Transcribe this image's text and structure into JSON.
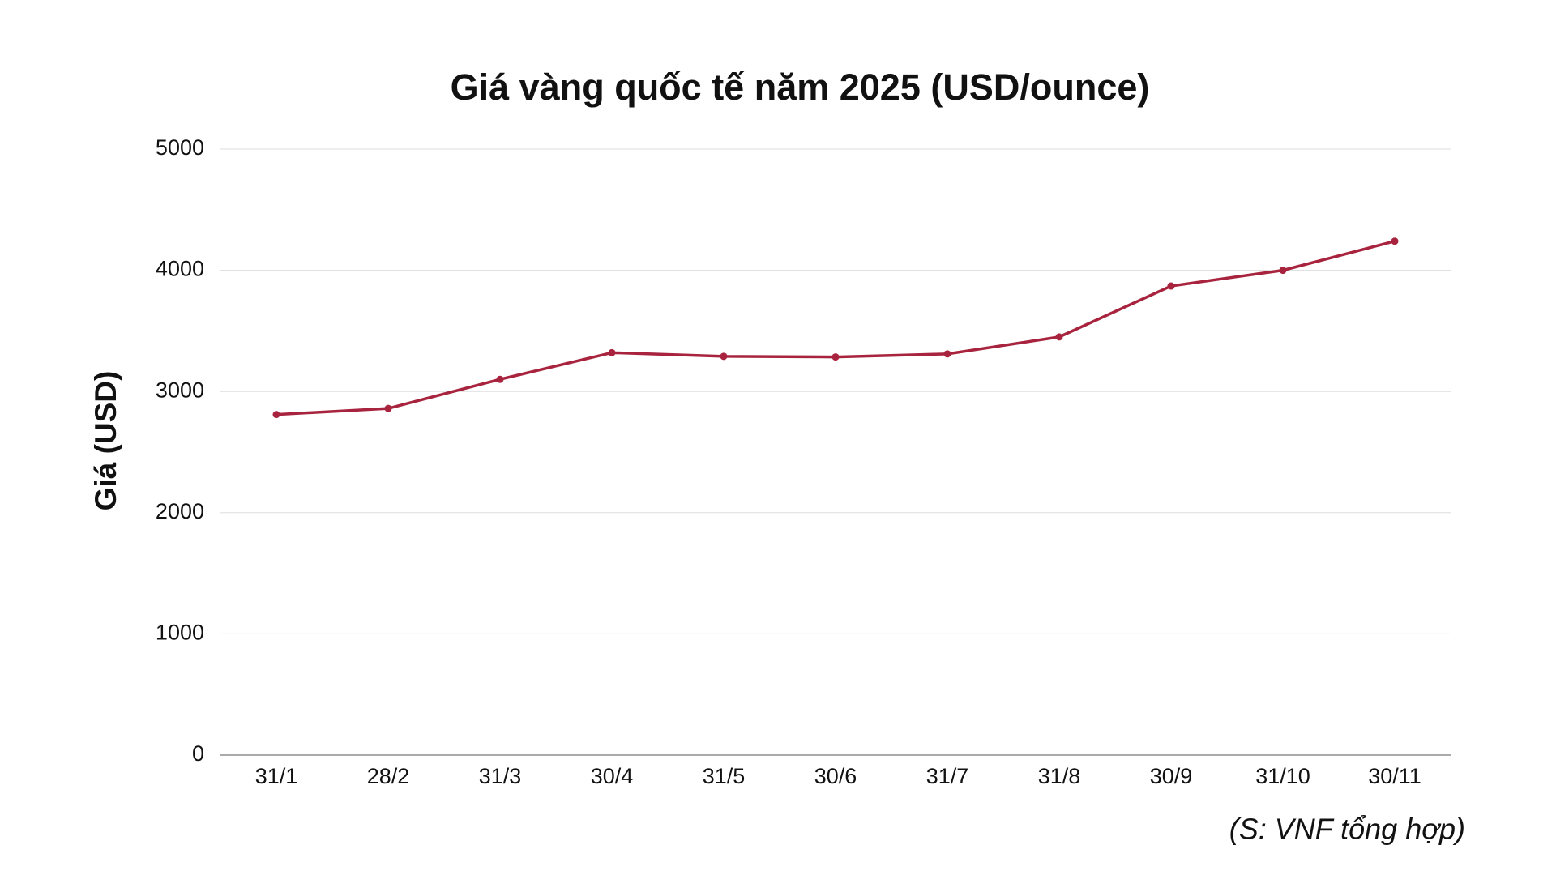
{
  "chart_data": {
    "type": "line",
    "title": "Giá vàng quốc tế năm 2025 (USD/ounce)",
    "y_label": "Giá (USD)",
    "source": "(S: VNF tổng hợp)",
    "categories": [
      "31/1",
      "28/2",
      "31/3",
      "30/4",
      "31/5",
      "30/6",
      "31/7",
      "31/8",
      "30/9",
      "31/10",
      "30/11"
    ],
    "values": [
      2810,
      2860,
      3100,
      3320,
      3290,
      3285,
      3310,
      3450,
      3870,
      4000,
      4240
    ],
    "color": "#a8243e",
    "ylim": [
      0,
      5000
    ],
    "yticks": [
      0,
      1000,
      2000,
      3000,
      4000,
      5000
    ],
    "grid": true
  }
}
